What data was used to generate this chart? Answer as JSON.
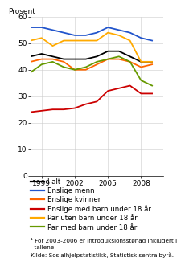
{
  "years": [
    1998,
    1999,
    2000,
    2001,
    2002,
    2003,
    2004,
    2005,
    2006,
    2007,
    2008,
    2009
  ],
  "i_alt": [
    45,
    46,
    45,
    44,
    44,
    44,
    45,
    47,
    47,
    45,
    43,
    43
  ],
  "enslige_menn": [
    56,
    56,
    55,
    54,
    53,
    53,
    54,
    56,
    55,
    54,
    52,
    51
  ],
  "enslige_kvinner": [
    43,
    44,
    44,
    43,
    40,
    40,
    42,
    44,
    44,
    43,
    41,
    42
  ],
  "enslige_barn": [
    24,
    24.5,
    25,
    25,
    25.5,
    27,
    28,
    32,
    33,
    34,
    31,
    31
  ],
  "par_uten_barn": [
    51,
    52,
    49,
    51,
    51,
    51,
    51,
    54,
    53,
    51,
    43,
    43
  ],
  "par_med_barn": [
    39,
    42,
    43,
    41,
    40,
    41,
    43,
    44,
    45,
    43,
    36,
    34
  ],
  "colors": {
    "i_alt": "#000000",
    "enslige_menn": "#2255cc",
    "enslige_kvinner": "#ff6600",
    "enslige_barn": "#cc0000",
    "par_uten_barn": "#ffaa00",
    "par_med_barn": "#669900"
  },
  "ylabel": "Prosent",
  "ylim": [
    0,
    60
  ],
  "yticks": [
    0,
    10,
    20,
    30,
    40,
    50,
    60
  ],
  "xtick_labels": [
    "1999",
    "2002",
    "2005",
    "2008"
  ],
  "xtick_positions": [
    1999,
    2002,
    2005,
    2008
  ],
  "legend_labels": [
    "I alt",
    "Enslige menn",
    "Enslige kvinner",
    "Enslige med barn under 18 år",
    "Par uten barn under 18 år",
    "Par med barn under 18 år"
  ],
  "footnote_line1": "¹ For 2003-2006 er introduksjonsstønad inkludert i",
  "footnote_line2": "  tallene.",
  "footnote_line3": "Kilde: Sosialhjelpstatistikk, Statistisk sentralbyrå.",
  "footnote_fontsize": 5.2,
  "legend_fontsize": 6.2,
  "ylabel_fontsize": 6.5,
  "tick_fontsize": 6.5,
  "linewidth": 1.3
}
